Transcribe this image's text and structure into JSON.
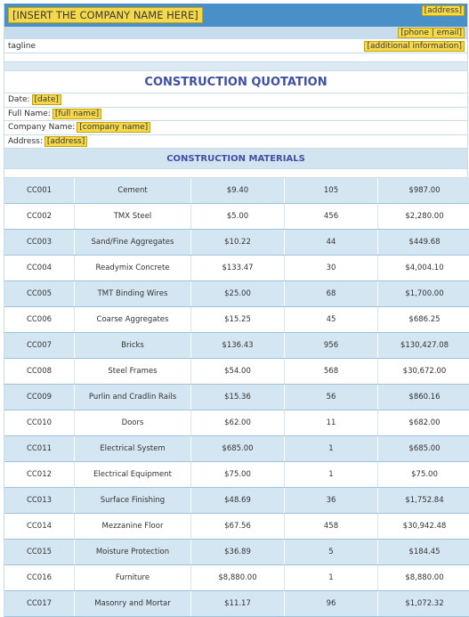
{
  "header": {
    "company_name": "[INSERT THE COMPANY NAME HERE]",
    "address": "[address]",
    "phone_email": "[phone | email]",
    "tagline": "tagline",
    "additional_info": "[additional information]"
  },
  "title": "CONSTRUCTION QUOTATION",
  "info": {
    "date_label": "Date:",
    "date_value": "[date]",
    "name_label": "Full Name:",
    "name_value": "[full name]",
    "company_label": "Company Name:",
    "company_value": "[company name]",
    "address_label": "Address:",
    "address_value": "[address]"
  },
  "section_title": "CONSTRUCTION MATERIALS",
  "materials": [
    {
      "code": "CC001",
      "item": "Cement",
      "price": "$9.40",
      "qty": "105",
      "total": "$987.00"
    },
    {
      "code": "CC002",
      "item": "TMX Steel",
      "price": "$5.00",
      "qty": "456",
      "total": "$2,280.00"
    },
    {
      "code": "CC003",
      "item": "Sand/Fine Aggregates",
      "price": "$10.22",
      "qty": "44",
      "total": "$449.68"
    },
    {
      "code": "CC004",
      "item": "Readymix Concrete",
      "price": "$133.47",
      "qty": "30",
      "total": "$4,004.10"
    },
    {
      "code": "CC005",
      "item": "TMT Binding Wires",
      "price": "$25.00",
      "qty": "68",
      "total": "$1,700.00"
    },
    {
      "code": "CC006",
      "item": "Coarse Aggregates",
      "price": "$15.25",
      "qty": "45",
      "total": "$686.25"
    },
    {
      "code": "CC007",
      "item": "Bricks",
      "price": "$136.43",
      "qty": "956",
      "total": "$130,427.08"
    },
    {
      "code": "CC008",
      "item": "Steel Frames",
      "price": "$54.00",
      "qty": "568",
      "total": "$30,672.00"
    },
    {
      "code": "CC009",
      "item": "Purlin and Cradlin Rails",
      "price": "$15.36",
      "qty": "56",
      "total": "$860.16"
    },
    {
      "code": "CC010",
      "item": "Doors",
      "price": "$62.00",
      "qty": "11",
      "total": "$682.00"
    },
    {
      "code": "CC011",
      "item": "Electrical System",
      "price": "$685.00",
      "qty": "1",
      "total": "$685.00"
    },
    {
      "code": "CC012",
      "item": "Electrical Equipment",
      "price": "$75.00",
      "qty": "1",
      "total": "$75.00"
    },
    {
      "code": "CC013",
      "item": "Surface Finishing",
      "price": "$48.69",
      "qty": "36",
      "total": "$1,752.84"
    },
    {
      "code": "CC014",
      "item": "Mezzanine Floor",
      "price": "$67.56",
      "qty": "458",
      "total": "$30,942.48"
    },
    {
      "code": "CC015",
      "item": "Moisture Protection",
      "price": "$36.89",
      "qty": "5",
      "total": "$184.45"
    },
    {
      "code": "CC016",
      "item": "Furniture",
      "price": "$8,880.00",
      "qty": "1",
      "total": "$8,880.00"
    },
    {
      "code": "CC017",
      "item": "Masonry and Mortar",
      "price": "$11.17",
      "qty": "96",
      "total": "$1,072.32"
    }
  ]
}
